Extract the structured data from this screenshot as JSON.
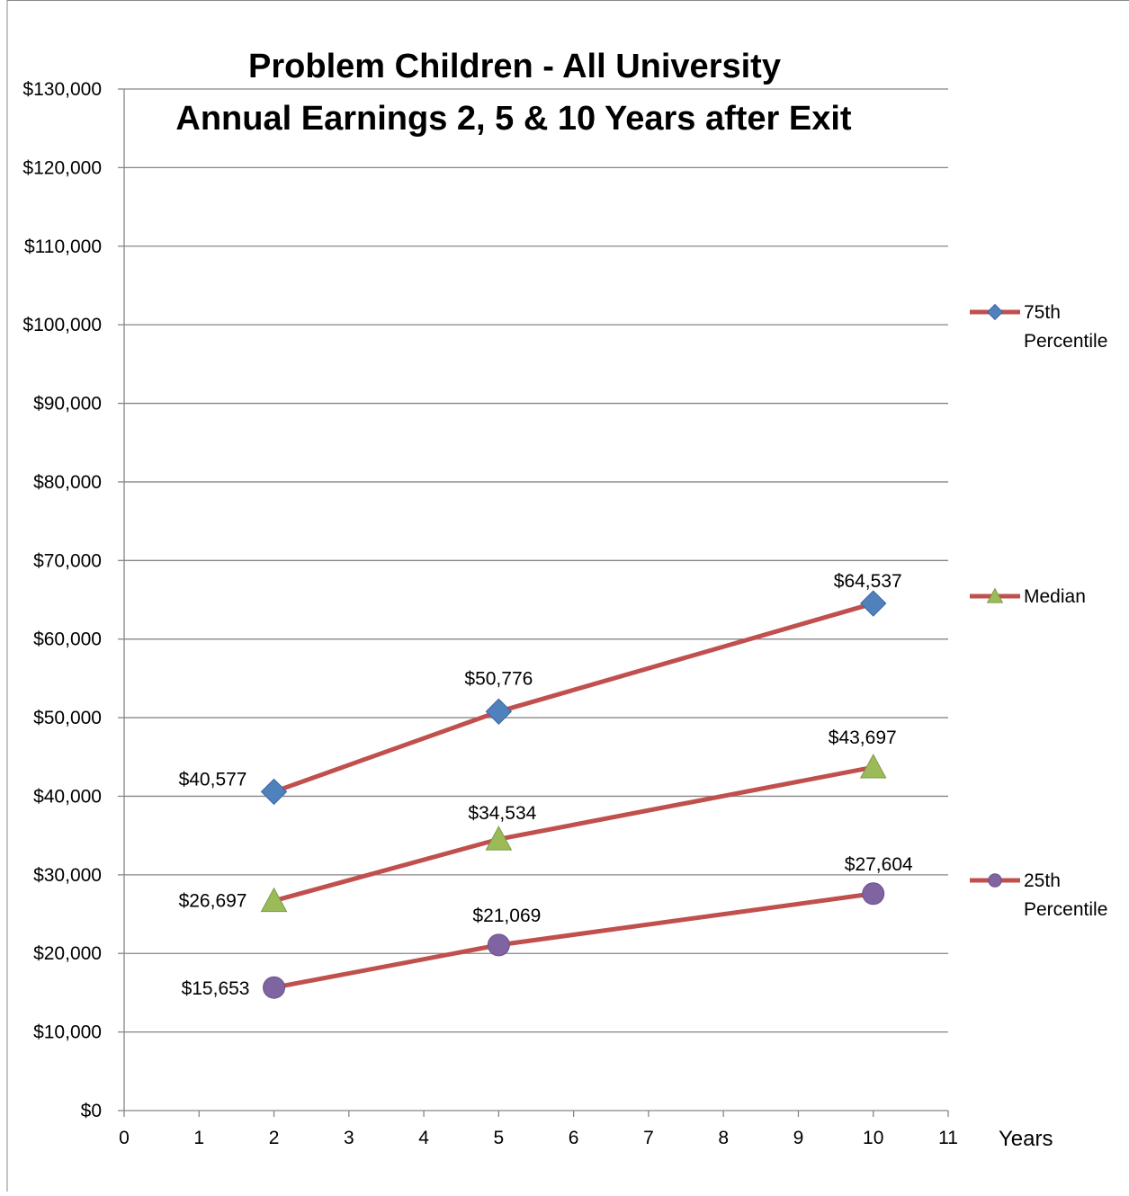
{
  "chart_data": {
    "type": "line",
    "title": "Problem Children - All University",
    "subtitle": "Annual Earnings 2, 5 & 10 Years after Exit",
    "xlabel": "Years",
    "ylabel": "",
    "xlim": [
      0,
      11
    ],
    "ylim": [
      0,
      130000
    ],
    "x_ticks": [
      0,
      1,
      2,
      3,
      4,
      5,
      6,
      7,
      8,
      9,
      10,
      11
    ],
    "y_ticks": [
      0,
      10000,
      20000,
      30000,
      40000,
      50000,
      60000,
      70000,
      80000,
      90000,
      100000,
      110000,
      120000,
      130000
    ],
    "y_tick_labels": [
      "$0",
      "$10,000",
      "$20,000",
      "$30,000",
      "$40,000",
      "$50,000",
      "$60,000",
      "$70,000",
      "$80,000",
      "$90,000",
      "$100,000",
      "$110,000",
      "$120,000",
      "$130,000"
    ],
    "grid": true,
    "legend_position": "right",
    "line_color": "#C0504D",
    "series": [
      {
        "name": "75th Percentile",
        "marker": "diamond",
        "marker_color": "#4F81BD",
        "x": [
          2,
          5,
          10
        ],
        "values": [
          40577,
          50776,
          64537
        ],
        "labels": [
          "$40,577",
          "$50,776",
          "$64,537"
        ]
      },
      {
        "name": "Median",
        "marker": "triangle",
        "marker_color": "#9BBB59",
        "x": [
          2,
          5,
          10
        ],
        "values": [
          26697,
          34534,
          43697
        ],
        "labels": [
          "$26,697",
          "$34,534",
          "$43,697"
        ]
      },
      {
        "name": "25th Percentile",
        "marker": "circle",
        "marker_color": "#8064A2",
        "x": [
          2,
          5,
          10
        ],
        "values": [
          15653,
          21069,
          27604
        ],
        "labels": [
          "$15,653",
          "$21,069",
          "$27,604"
        ]
      }
    ],
    "legend": [
      {
        "lines": [
          "75th",
          "Percentile"
        ]
      },
      {
        "lines": [
          "Median"
        ]
      },
      {
        "lines": [
          "25th",
          "Percentile"
        ]
      }
    ]
  }
}
